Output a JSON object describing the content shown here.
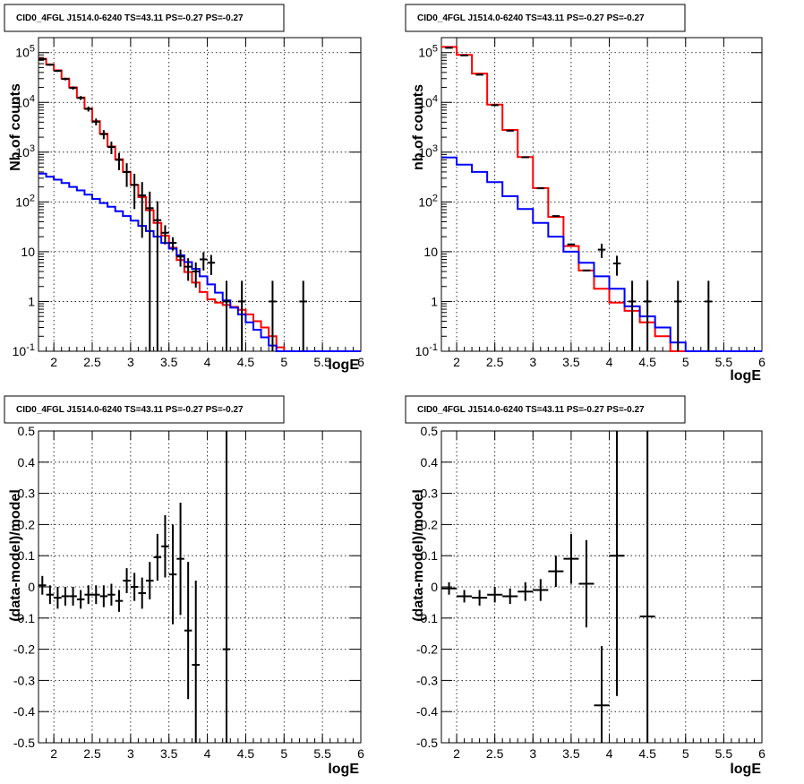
{
  "colors": {
    "background": "#ffffff",
    "model": "#ff0000",
    "component": "#0000ff",
    "data": "#000000"
  },
  "chart_data": [
    {
      "type": "line",
      "title": "CID0_4FGL J1514.0-6240 TS=43.11 PS=-0.27 PS=-0.27",
      "xlabel": "logE",
      "ylabel": "Nb of counts",
      "xlim": [
        1.8,
        6.0
      ],
      "ylim": [
        0.1,
        200000
      ],
      "yscale": "log",
      "grid": true,
      "x_ticks": [
        "2",
        "2.5",
        "3",
        "3.5",
        "4",
        "4.5",
        "5",
        "5.5",
        "6"
      ],
      "y_ticks": [
        "10^-1",
        "1",
        "10",
        "10^2",
        "10^3",
        "10^4",
        "10^5"
      ],
      "bin_edges": [
        1.8,
        1.9,
        2.0,
        2.1,
        2.2,
        2.3,
        2.4,
        2.5,
        2.6,
        2.7,
        2.8,
        2.9,
        3.0,
        3.1,
        3.2,
        3.3,
        3.4,
        3.5,
        3.6,
        3.7,
        3.8,
        3.9,
        4.0,
        4.1,
        4.2,
        4.3,
        4.4,
        4.5,
        4.6,
        4.7,
        4.8,
        4.9,
        5.0,
        5.1,
        5.2,
        5.3,
        5.4,
        5.5,
        5.6,
        5.7,
        5.8,
        5.9,
        6.0
      ],
      "series": [
        {
          "name": "",
          "style": "step",
          "color": "#ff0000",
          "values": [
            75000,
            58000,
            44000,
            30000,
            20000,
            12500,
            7500,
            4200,
            2350,
            1300,
            720,
            400,
            220,
            125,
            68,
            38,
            21,
            12,
            6.8,
            3.9,
            2.4,
            1.55,
            1.1,
            0.95,
            0.85,
            0.78,
            0.68,
            0.55,
            0.4,
            0.3,
            0.2,
            0.12,
            0.1,
            0.1,
            0.1,
            0.1,
            0.1,
            0.1,
            0.1,
            0.1,
            0.1,
            0.1
          ]
        },
        {
          "name": "",
          "style": "step",
          "color": "#0000ff",
          "values": [
            370,
            320,
            280,
            240,
            200,
            170,
            140,
            115,
            95,
            80,
            65,
            52,
            42,
            33,
            26,
            20,
            15,
            11.5,
            8.5,
            6.2,
            4.5,
            3.2,
            2.2,
            1.5,
            1.05,
            0.75,
            0.55,
            0.38,
            0.27,
            0.19,
            0.13,
            0.1,
            0.1,
            0.1,
            0.1,
            0.1,
            0.1,
            0.1,
            0.1,
            0.1,
            0.1,
            0.1
          ]
        },
        {
          "name": "",
          "style": "errorbar",
          "color": "#000000",
          "x": [
            1.85,
            1.95,
            2.05,
            2.15,
            2.25,
            2.35,
            2.45,
            2.55,
            2.65,
            2.75,
            2.85,
            2.95,
            3.05,
            3.15,
            3.25,
            3.35,
            3.45,
            3.55,
            3.65,
            3.75,
            3.85,
            3.95,
            4.05,
            4.25,
            4.45,
            4.85,
            5.25
          ],
          "y": [
            74000,
            57000,
            43000,
            29500,
            19500,
            12300,
            7400,
            4100,
            2300,
            1270,
            700,
            400,
            220,
            135,
            75,
            43,
            24,
            15,
            8,
            5,
            4,
            7,
            6,
            1,
            1,
            1,
            1
          ],
          "yerr_low": [
            2700,
            2400,
            2100,
            1700,
            1400,
            1100,
            860,
            640,
            480,
            356,
            265,
            200,
            148,
            116,
            86,
            60,
            10,
            4.5,
            3,
            2.4,
            2.1,
            2.8,
            2.6,
            0.9,
            0.9,
            0.9,
            0.9
          ],
          "yerr_high": [
            2700,
            2400,
            2100,
            1700,
            1400,
            1100,
            860,
            640,
            480,
            356,
            265,
            200,
            148,
            116,
            86,
            60,
            10,
            4.5,
            3,
            2.4,
            2.1,
            2.8,
            2.6,
            1.6,
            1.6,
            1.6,
            1.6
          ]
        }
      ]
    },
    {
      "type": "line",
      "title": "CID0_4FGL J1514.0-6240 TS=43.11 PS=-0.27 PS=-0.27",
      "xlabel": "logE",
      "ylabel": "nb of counts",
      "xlim": [
        1.8,
        6.0
      ],
      "ylim": [
        0.1,
        200000
      ],
      "yscale": "log",
      "grid": true,
      "x_ticks": [
        "2",
        "2.5",
        "3",
        "3.5",
        "4",
        "4.5",
        "5",
        "5.5",
        "6"
      ],
      "y_ticks": [
        "10^-1",
        "1",
        "10",
        "10^2",
        "10^3",
        "10^4",
        "10^5"
      ],
      "bin_edges": [
        1.8,
        2.0,
        2.2,
        2.4,
        2.6,
        2.8,
        3.0,
        3.2,
        3.4,
        3.6,
        3.8,
        4.0,
        4.2,
        4.4,
        4.6,
        4.8,
        5.0,
        5.2,
        5.4,
        5.6,
        5.8,
        6.0
      ],
      "series": [
        {
          "name": "",
          "style": "step",
          "color": "#ff0000",
          "values": [
            130000,
            90000,
            38000,
            9000,
            2800,
            800,
            190,
            50,
            13,
            4.2,
            1.8,
            0.95,
            0.65,
            0.38,
            0.2,
            0.1,
            0.1,
            0.1,
            0.1,
            0.1,
            0.1
          ]
        },
        {
          "name": "",
          "style": "step",
          "color": "#0000ff",
          "values": [
            780,
            560,
            400,
            250,
            130,
            72,
            38,
            20,
            10,
            6,
            3.2,
            1.8,
            0.8,
            0.5,
            0.3,
            0.15,
            0.1,
            0.1,
            0.1,
            0.1,
            0.1
          ]
        },
        {
          "name": "",
          "style": "errorbar",
          "color": "#000000",
          "x": [
            1.9,
            2.1,
            2.3,
            2.5,
            2.7,
            2.9,
            3.1,
            3.3,
            3.5,
            3.7,
            3.9,
            4.1,
            4.3,
            4.5,
            4.9,
            5.3
          ],
          "y": [
            125000,
            88000,
            36000,
            8800,
            2700,
            790,
            188,
            52,
            14,
            4.2,
            11,
            5.8,
            1,
            1,
            1,
            1
          ],
          "yerr_low": [
            0,
            0,
            0,
            0,
            0,
            0,
            0,
            0,
            0,
            0,
            3.5,
            2.5,
            0.9,
            0.9,
            0.9,
            0.9
          ],
          "yerr_high": [
            0,
            0,
            0,
            0,
            0,
            0,
            0,
            0,
            0,
            0,
            3.5,
            2.5,
            1.6,
            1.6,
            1.6,
            1.6
          ]
        }
      ]
    },
    {
      "type": "scatter",
      "title": "CID0_4FGL J1514.0-6240 TS=43.11 PS=-0.27 PS=-0.27",
      "xlabel": "logE",
      "ylabel": "(data-model)/model",
      "xlim": [
        1.8,
        6.0
      ],
      "ylim": [
        -0.5,
        0.5
      ],
      "grid": true,
      "x_ticks": [
        "2",
        "2.5",
        "3",
        "3.5",
        "4",
        "4.5",
        "5",
        "5.5",
        "6"
      ],
      "y_ticks": [
        "-0.5",
        "-0.4",
        "-0.3",
        "-0.2",
        "-0.1",
        "0",
        "0.1",
        "0.2",
        "0.3",
        "0.4",
        "0.5"
      ],
      "series": [
        {
          "name": "",
          "style": "errorbar",
          "color": "#000000",
          "x": [
            1.85,
            1.95,
            2.05,
            2.15,
            2.25,
            2.35,
            2.45,
            2.55,
            2.65,
            2.75,
            2.85,
            2.95,
            3.05,
            3.15,
            3.25,
            3.35,
            3.45,
            3.55,
            3.65,
            3.75,
            3.85,
            4.25
          ],
          "y": [
            0.005,
            -0.025,
            -0.035,
            -0.03,
            -0.03,
            -0.04,
            -0.025,
            -0.025,
            -0.03,
            -0.025,
            -0.045,
            0.02,
            0.0,
            -0.02,
            0.02,
            0.095,
            0.13,
            0.04,
            0.09,
            -0.14,
            -0.25,
            -0.2
          ],
          "yerr": [
            0.03,
            0.03,
            0.035,
            0.03,
            0.03,
            0.03,
            0.03,
            0.03,
            0.035,
            0.035,
            0.035,
            0.04,
            0.045,
            0.05,
            0.06,
            0.075,
            0.1,
            0.16,
            0.18,
            0.22,
            0.27,
            0.7
          ],
          "xerr": 0.05
        }
      ]
    },
    {
      "type": "scatter",
      "title": "CID0_4FGL J1514.0-6240 TS=43.11 PS=-0.27 PS=-0.27",
      "xlabel": "logE",
      "ylabel": "(data-model)/model",
      "xlim": [
        1.8,
        6.0
      ],
      "ylim": [
        -0.5,
        0.5
      ],
      "grid": true,
      "x_ticks": [
        "2",
        "2.5",
        "3",
        "3.5",
        "4",
        "4.5",
        "5",
        "5.5",
        "6"
      ],
      "y_ticks": [
        "-0.5",
        "-0.4",
        "-0.3",
        "-0.2",
        "-0.1",
        "0",
        "0.1",
        "0.2",
        "0.3",
        "0.4",
        "0.5"
      ],
      "series": [
        {
          "name": "",
          "style": "errorbar",
          "color": "#000000",
          "x": [
            1.9,
            2.1,
            2.3,
            2.5,
            2.7,
            2.9,
            3.1,
            3.3,
            3.5,
            3.7,
            3.9,
            4.1,
            4.5
          ],
          "y": [
            -0.005,
            -0.03,
            -0.035,
            -0.025,
            -0.03,
            -0.015,
            -0.01,
            0.05,
            0.09,
            0.01,
            -0.38,
            0.1,
            -0.095
          ],
          "yerr": [
            0.02,
            0.02,
            0.025,
            0.025,
            0.025,
            0.03,
            0.035,
            0.05,
            0.08,
            0.14,
            0.19,
            0.45,
            0.6
          ],
          "xerr": 0.1
        }
      ]
    }
  ]
}
